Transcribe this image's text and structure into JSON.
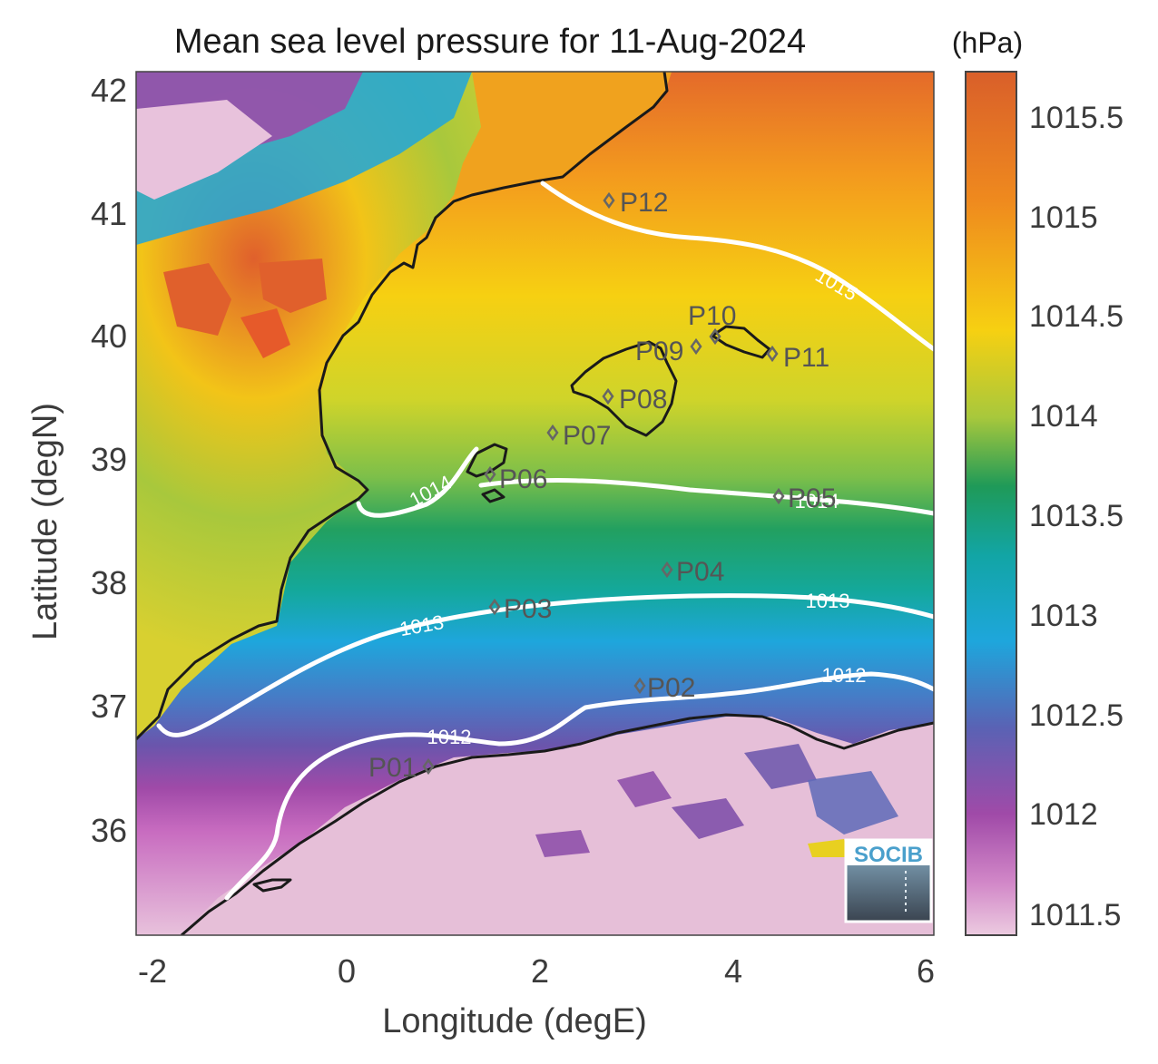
{
  "title": "Mean sea level pressure for 11-Aug-2024",
  "units": "(hPa)",
  "x_axis": {
    "label": "Longitude (degE)",
    "ticks": [
      "-2",
      "0",
      "2",
      "4",
      "6"
    ]
  },
  "y_axis": {
    "label": "Latitude (degN)",
    "ticks": [
      "42",
      "41",
      "40",
      "39",
      "38",
      "37",
      "36"
    ]
  },
  "colorbar": {
    "ticks": [
      "1015.5",
      "1015",
      "1014.5",
      "1014",
      "1013.5",
      "1013",
      "1012.5",
      "1012",
      "1011.5"
    ],
    "colors": [
      "#d95f2a",
      "#f0a020",
      "#f4d611",
      "#a8c83c",
      "#1f9a58",
      "#10a8b0",
      "#1ea6dc",
      "#5e6ab8",
      "#a04aa8",
      "#c86cc0",
      "#e8c2dc"
    ]
  },
  "isobars": [
    {
      "label": "1015"
    },
    {
      "label": "1014"
    },
    {
      "label": "1014"
    },
    {
      "label": "1013"
    },
    {
      "label": "1013"
    },
    {
      "label": "1012"
    },
    {
      "label": "1012"
    }
  ],
  "points": [
    {
      "id": "P01"
    },
    {
      "id": "P02"
    },
    {
      "id": "P03"
    },
    {
      "id": "P04"
    },
    {
      "id": "P05"
    },
    {
      "id": "P06"
    },
    {
      "id": "P07"
    },
    {
      "id": "P08"
    },
    {
      "id": "P09"
    },
    {
      "id": "P10"
    },
    {
      "id": "P11"
    },
    {
      "id": "P12"
    }
  ],
  "logo_text": "SOCIB"
}
